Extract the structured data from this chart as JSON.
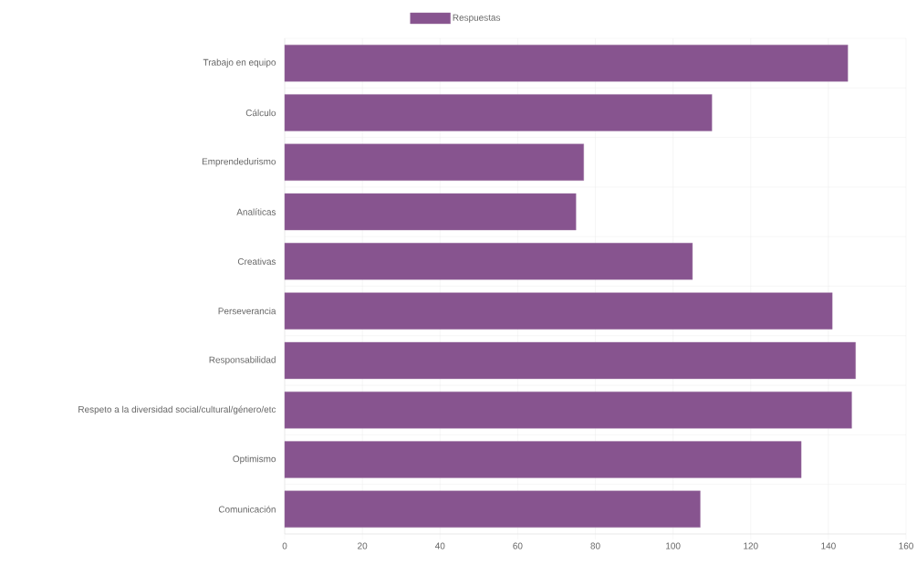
{
  "chart_data": {
    "type": "bar",
    "orientation": "horizontal",
    "categories": [
      "Trabajo en equipo",
      "Cálculo",
      "Emprendedurismo",
      "Analíticas",
      "Creativas",
      "Perseverancia",
      "Responsabilidad",
      "Respeto a la diversidad social/cultural/género/etc",
      "Optimismo",
      "Comunicación"
    ],
    "series": [
      {
        "name": "Respuestas",
        "color": "#87548f",
        "values": [
          145,
          110,
          77,
          75,
          105,
          141,
          147,
          146,
          133,
          107
        ]
      }
    ],
    "xlim": [
      0,
      160
    ],
    "xticks": [
      0,
      20,
      40,
      60,
      80,
      100,
      120,
      140,
      160
    ],
    "grid": true,
    "legend": "top"
  }
}
